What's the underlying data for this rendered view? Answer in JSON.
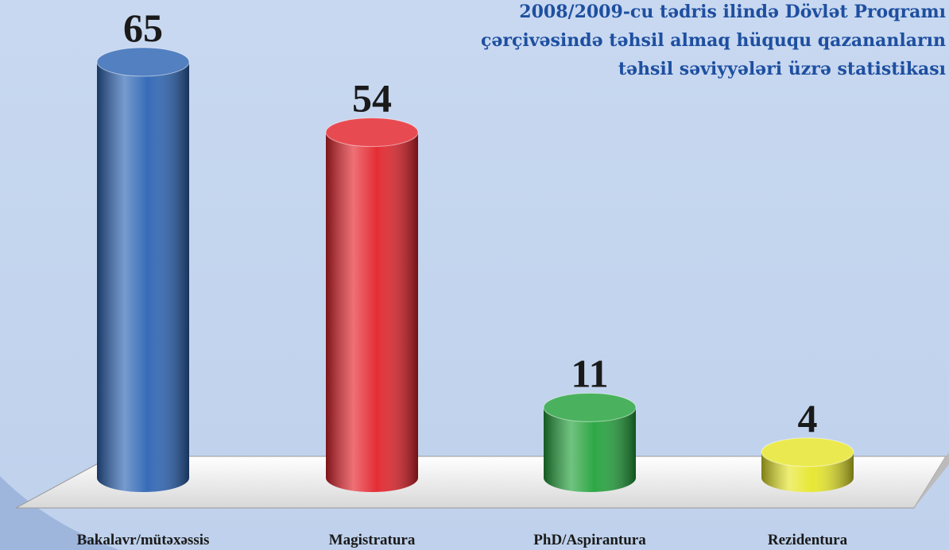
{
  "chart_data": {
    "type": "bar3d",
    "title": [
      "2008/2009-cu tədris ilində  Dövlət Proqramı",
      "çərçivəsində təhsil almaq hüququ qazananların",
      "təhsil səviyyələri üzrə statistikası"
    ],
    "categories": [
      "Bakalavr/mütəxəssis",
      "Magistratura",
      "PhD/Aspirantura",
      "Rezidentura"
    ],
    "values": [
      65,
      54,
      11,
      4
    ],
    "colors": [
      "#2c64b4",
      "#e3232b",
      "#23a23c",
      "#e6e62a"
    ]
  }
}
